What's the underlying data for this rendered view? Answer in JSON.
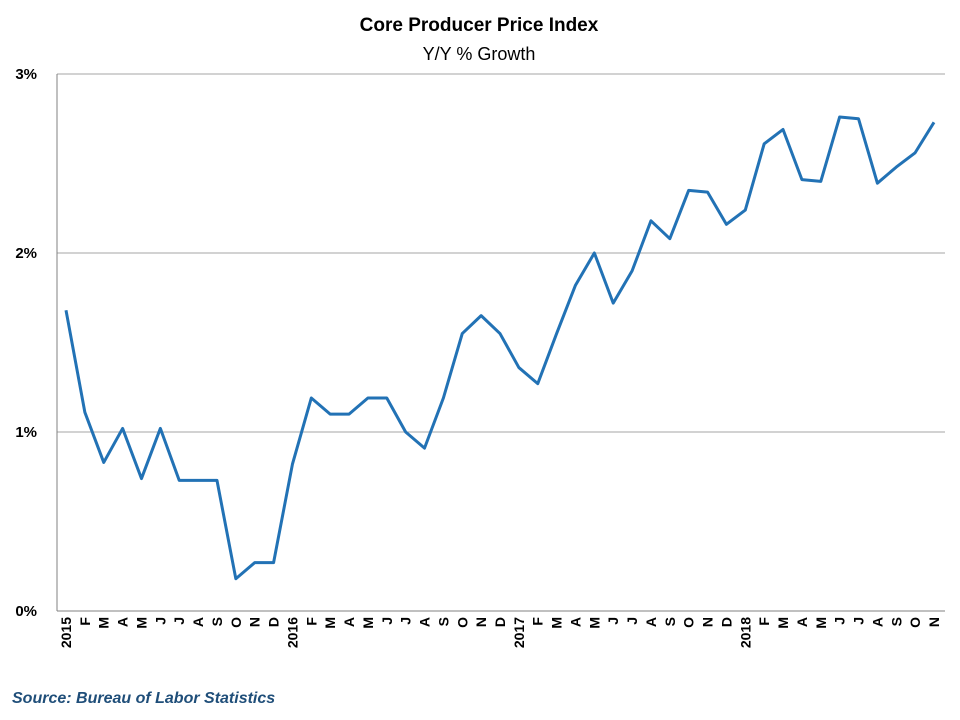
{
  "colors": {
    "line": "#2272B5",
    "grid": "#A6A6A6",
    "axis": "#808080",
    "source": "#1F4E79"
  },
  "chart_data": {
    "type": "line",
    "title": "Core Producer Price Index",
    "subtitle": "Y/Y % Growth",
    "ylim": [
      0,
      3
    ],
    "y_ticks": [
      "0%",
      "1%",
      "2%",
      "3%"
    ],
    "grid": true,
    "categories": [
      "2015",
      "F",
      "M",
      "A",
      "M",
      "J",
      "J",
      "A",
      "S",
      "O",
      "N",
      "D",
      "2016",
      "F",
      "M",
      "A",
      "M",
      "J",
      "J",
      "A",
      "S",
      "O",
      "N",
      "D",
      "2017",
      "F",
      "M",
      "A",
      "M",
      "J",
      "J",
      "A",
      "S",
      "O",
      "N",
      "D",
      "2018",
      "F",
      "M",
      "A",
      "M",
      "J",
      "J",
      "A",
      "S",
      "O",
      "N"
    ],
    "series": [
      {
        "values": [
          1.68,
          1.11,
          0.83,
          1.02,
          0.74,
          1.02,
          0.73,
          0.73,
          0.73,
          0.18,
          0.27,
          0.27,
          0.82,
          1.19,
          1.1,
          1.1,
          1.19,
          1.19,
          1.0,
          0.91,
          1.19,
          1.55,
          1.65,
          1.55,
          1.36,
          1.27,
          1.55,
          1.82,
          2.0,
          1.72,
          1.9,
          2.18,
          2.08,
          2.35,
          2.34,
          2.16,
          2.24,
          2.61,
          2.69,
          2.41,
          2.4,
          2.76,
          2.75,
          2.39,
          2.48,
          2.56,
          2.73
        ]
      }
    ]
  },
  "source": "Source: Bureau of Labor Statistics"
}
